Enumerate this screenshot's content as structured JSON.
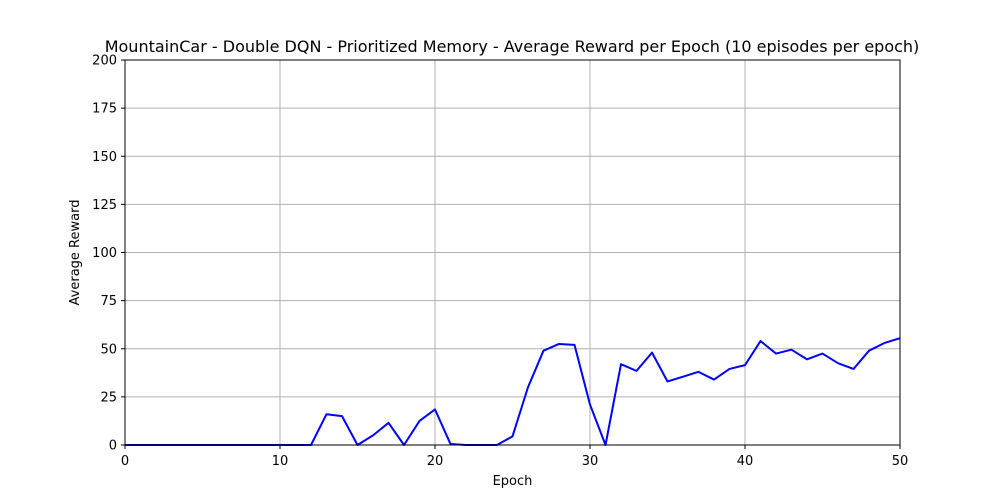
{
  "chart_data": {
    "type": "line",
    "title": "MountainCar - Double DQN - Prioritized Memory - Average Reward per Epoch (10 episodes per epoch)",
    "xlabel": "Epoch",
    "ylabel": "Average Reward",
    "xlim": [
      0,
      50
    ],
    "ylim": [
      0,
      200
    ],
    "xticks": [
      0,
      10,
      20,
      30,
      40,
      50
    ],
    "yticks": [
      0,
      25,
      50,
      75,
      100,
      125,
      150,
      175,
      200
    ],
    "grid": true,
    "series": [
      {
        "color": "#0000ff",
        "x": [
          0,
          1,
          2,
          3,
          4,
          5,
          6,
          7,
          8,
          9,
          10,
          11,
          12,
          13,
          14,
          15,
          16,
          17,
          18,
          19,
          20,
          21,
          22,
          23,
          24,
          25,
          26,
          27,
          28,
          29,
          30,
          31,
          32,
          33,
          34,
          35,
          36,
          37,
          38,
          39,
          40,
          41,
          42,
          43,
          44,
          45,
          46,
          47,
          48,
          49,
          50
        ],
        "y": [
          0,
          0,
          0,
          0,
          0,
          0,
          0,
          0,
          0,
          0,
          0,
          0,
          0,
          16,
          15,
          0,
          5,
          11.5,
          0,
          12.5,
          18.5,
          0.5,
          0,
          0,
          0,
          4.5,
          30,
          49,
          52.5,
          52,
          21,
          0,
          42,
          38.5,
          48,
          33,
          35.5,
          38,
          34,
          39.5,
          41.5,
          54,
          47.5,
          49.5,
          44.5,
          47.5,
          42.5,
          39.5,
          49,
          53,
          55.5
        ]
      }
    ]
  }
}
